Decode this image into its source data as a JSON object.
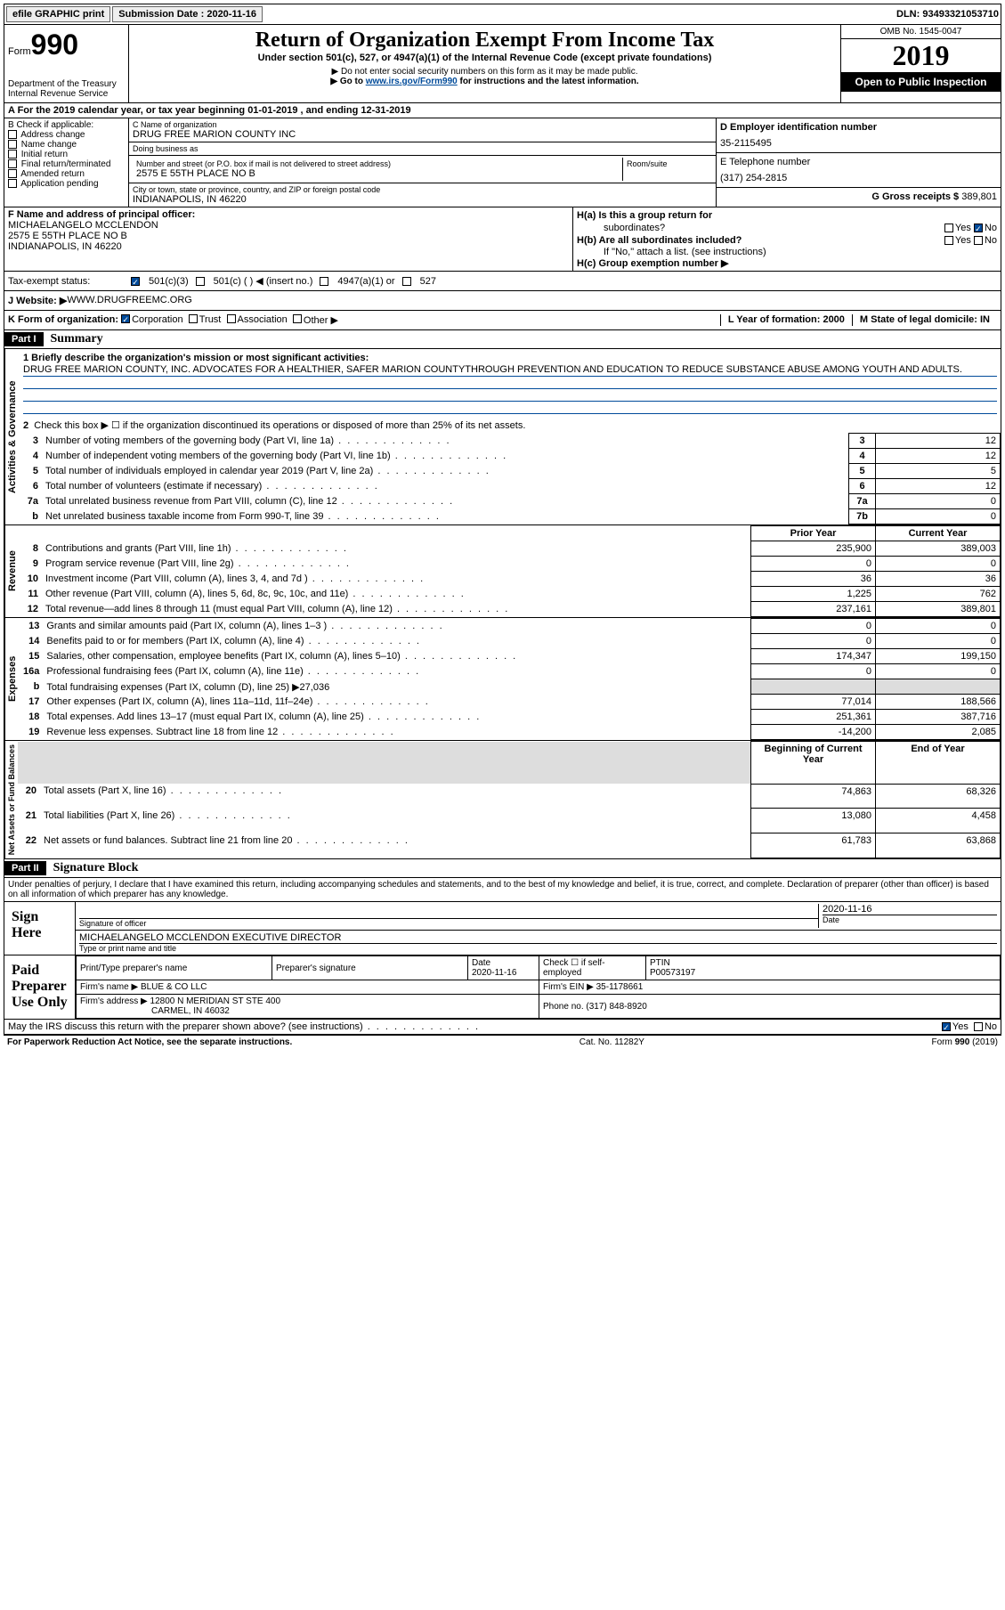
{
  "topbar": {
    "efile": "efile GRAPHIC print",
    "submission_label": "Submission Date : ",
    "submission_date": "2020-11-16",
    "dln": "DLN: 93493321053710"
  },
  "header": {
    "form_prefix": "Form",
    "form_number": "990",
    "dept": "Department of the Treasury",
    "irs": "Internal Revenue Service",
    "title": "Return of Organization Exempt From Income Tax",
    "subtitle": "Under section 501(c), 527, or 4947(a)(1) of the Internal Revenue Code (except private foundations)",
    "note1": "▶ Do not enter social security numbers on this form as it may be made public.",
    "note2_pre": "▶ Go to ",
    "note2_link": "www.irs.gov/Form990",
    "note2_post": " for instructions and the latest information.",
    "omb": "OMB No. 1545-0047",
    "year": "2019",
    "inspection": "Open to Public Inspection"
  },
  "rowA": "A For the 2019 calendar year, or tax year beginning 01-01-2019   , and ending 12-31-2019",
  "sectionB": {
    "header": "B Check if applicable:",
    "items": [
      "Address change",
      "Name change",
      "Initial return",
      "Final return/terminated",
      "Amended return",
      "Application pending"
    ]
  },
  "sectionC": {
    "name_label": "C Name of organization",
    "name": "DRUG FREE MARION COUNTY INC",
    "dba_label": "Doing business as",
    "dba": "",
    "addr_label": "Number and street (or P.O. box if mail is not delivered to street address)",
    "addr": "2575 E 55TH PLACE NO B",
    "room_label": "Room/suite",
    "city_label": "City or town, state or province, country, and ZIP or foreign postal code",
    "city": "INDIANAPOLIS, IN  46220"
  },
  "sectionD": {
    "ein_label": "D Employer identification number",
    "ein": "35-2115495",
    "phone_label": "E Telephone number",
    "phone": "(317) 254-2815",
    "gross_label": "G Gross receipts $ ",
    "gross": "389,801"
  },
  "sectionF": {
    "label": "F  Name and address of principal officer:",
    "name": "MICHAELANGELO MCCLENDON",
    "addr1": "2575 E 55TH PLACE NO B",
    "addr2": "INDIANAPOLIS, IN  46220"
  },
  "sectionH": {
    "a_label": "H(a)  Is this a group return for",
    "a_sub": "subordinates?",
    "b_label": "H(b)  Are all subordinates included?",
    "b_note": "If \"No,\" attach a list. (see instructions)",
    "c_label": "H(c)  Group exemption number ▶"
  },
  "taxExempt": {
    "label": "Tax-exempt status:",
    "opt1": "501(c)(3)",
    "opt2": "501(c) (   ) ◀ (insert no.)",
    "opt3": "4947(a)(1) or",
    "opt4": "527"
  },
  "website": {
    "label": "J   Website: ▶  ",
    "url": "WWW.DRUGFREEMC.ORG"
  },
  "rowK": {
    "label": "K Form of organization:",
    "opts": [
      "Corporation",
      "Trust",
      "Association",
      "Other ▶"
    ],
    "L": "L Year of formation: 2000",
    "M": "M State of legal domicile: IN"
  },
  "part1": {
    "header": "Part I",
    "title": "Summary",
    "q1_label": "1  Briefly describe the organization's mission or most significant activities:",
    "mission": "DRUG FREE MARION COUNTY, INC. ADVOCATES FOR A HEALTHIER, SAFER MARION COUNTYTHROUGH PREVENTION AND EDUCATION TO REDUCE SUBSTANCE ABUSE AMONG YOUTH AND ADULTS.",
    "q2": "Check this box ▶ ☐  if the organization discontinued its operations or disposed of more than 25% of its net assets.",
    "governance_label": "Activities & Governance",
    "revenue_label": "Revenue",
    "expenses_label": "Expenses",
    "netassets_label": "Net Assets or Fund Balances",
    "lines_gov": [
      {
        "n": "3",
        "text": "Number of voting members of the governing body (Part VI, line 1a)",
        "box": "3",
        "val": "12"
      },
      {
        "n": "4",
        "text": "Number of independent voting members of the governing body (Part VI, line 1b)",
        "box": "4",
        "val": "12"
      },
      {
        "n": "5",
        "text": "Total number of individuals employed in calendar year 2019 (Part V, line 2a)",
        "box": "5",
        "val": "5"
      },
      {
        "n": "6",
        "text": "Total number of volunteers (estimate if necessary)",
        "box": "6",
        "val": "12"
      },
      {
        "n": "7a",
        "text": "Total unrelated business revenue from Part VIII, column (C), line 12",
        "box": "7a",
        "val": "0"
      },
      {
        "n": "b",
        "text": "Net unrelated business taxable income from Form 990-T, line 39",
        "box": "7b",
        "val": "0"
      }
    ],
    "col_prior": "Prior Year",
    "col_current": "Current Year",
    "lines_rev": [
      {
        "n": "8",
        "text": "Contributions and grants (Part VIII, line 1h)",
        "prior": "235,900",
        "curr": "389,003"
      },
      {
        "n": "9",
        "text": "Program service revenue (Part VIII, line 2g)",
        "prior": "0",
        "curr": "0"
      },
      {
        "n": "10",
        "text": "Investment income (Part VIII, column (A), lines 3, 4, and 7d )",
        "prior": "36",
        "curr": "36"
      },
      {
        "n": "11",
        "text": "Other revenue (Part VIII, column (A), lines 5, 6d, 8c, 9c, 10c, and 11e)",
        "prior": "1,225",
        "curr": "762"
      },
      {
        "n": "12",
        "text": "Total revenue—add lines 8 through 11 (must equal Part VIII, column (A), line 12)",
        "prior": "237,161",
        "curr": "389,801"
      }
    ],
    "lines_exp": [
      {
        "n": "13",
        "text": "Grants and similar amounts paid (Part IX, column (A), lines 1–3 )",
        "prior": "0",
        "curr": "0"
      },
      {
        "n": "14",
        "text": "Benefits paid to or for members (Part IX, column (A), line 4)",
        "prior": "0",
        "curr": "0"
      },
      {
        "n": "15",
        "text": "Salaries, other compensation, employee benefits (Part IX, column (A), lines 5–10)",
        "prior": "174,347",
        "curr": "199,150"
      },
      {
        "n": "16a",
        "text": "Professional fundraising fees (Part IX, column (A), line 11e)",
        "prior": "0",
        "curr": "0"
      },
      {
        "n": "b",
        "text": "Total fundraising expenses (Part IX, column (D), line 25) ▶27,036",
        "prior": "shade",
        "curr": "shade"
      },
      {
        "n": "17",
        "text": "Other expenses (Part IX, column (A), lines 11a–11d, 11f–24e)",
        "prior": "77,014",
        "curr": "188,566"
      },
      {
        "n": "18",
        "text": "Total expenses. Add lines 13–17 (must equal Part IX, column (A), line 25)",
        "prior": "251,361",
        "curr": "387,716"
      },
      {
        "n": "19",
        "text": "Revenue less expenses. Subtract line 18 from line 12",
        "prior": "-14,200",
        "curr": "2,085"
      }
    ],
    "col_beg": "Beginning of Current Year",
    "col_end": "End of Year",
    "lines_net": [
      {
        "n": "20",
        "text": "Total assets (Part X, line 16)",
        "prior": "74,863",
        "curr": "68,326"
      },
      {
        "n": "21",
        "text": "Total liabilities (Part X, line 26)",
        "prior": "13,080",
        "curr": "4,458"
      },
      {
        "n": "22",
        "text": "Net assets or fund balances. Subtract line 21 from line 20",
        "prior": "61,783",
        "curr": "63,868"
      }
    ]
  },
  "part2": {
    "header": "Part II",
    "title": "Signature Block",
    "perjury": "Under penalties of perjury, I declare that I have examined this return, including accompanying schedules and statements, and to the best of my knowledge and belief, it is true, correct, and complete. Declaration of preparer (other than officer) is based on all information of which preparer has any knowledge.",
    "sign_here": "Sign Here",
    "sig_officer_label": "Signature of officer",
    "sig_date": "2020-11-16",
    "date_label": "Date",
    "officer_name": "MICHAELANGELO MCCLENDON  EXECUTIVE DIRECTOR",
    "type_label": "Type or print name and title",
    "paid_prep": "Paid Preparer Use Only",
    "prep_name_label": "Print/Type preparer's name",
    "prep_sig_label": "Preparer's signature",
    "prep_date_label": "Date",
    "prep_date": "2020-11-16",
    "check_self": "Check ☐ if self-employed",
    "ptin_label": "PTIN",
    "ptin": "P00573197",
    "firm_name_label": "Firm's name    ▶ ",
    "firm_name": "BLUE & CO LLC",
    "firm_ein_label": "Firm's EIN ▶ ",
    "firm_ein": "35-1178661",
    "firm_addr_label": "Firm's address ▶ ",
    "firm_addr1": "12800 N MERIDIAN ST STE 400",
    "firm_addr2": "CARMEL, IN  46032",
    "phone_label": "Phone no. ",
    "phone": "(317) 848-8920",
    "discuss": "May the IRS discuss this return with the preparer shown above? (see instructions)"
  },
  "footer": {
    "paperwork": "For Paperwork Reduction Act Notice, see the separate instructions.",
    "cat": "Cat. No. 11282Y",
    "form": "Form 990 (2019)"
  }
}
